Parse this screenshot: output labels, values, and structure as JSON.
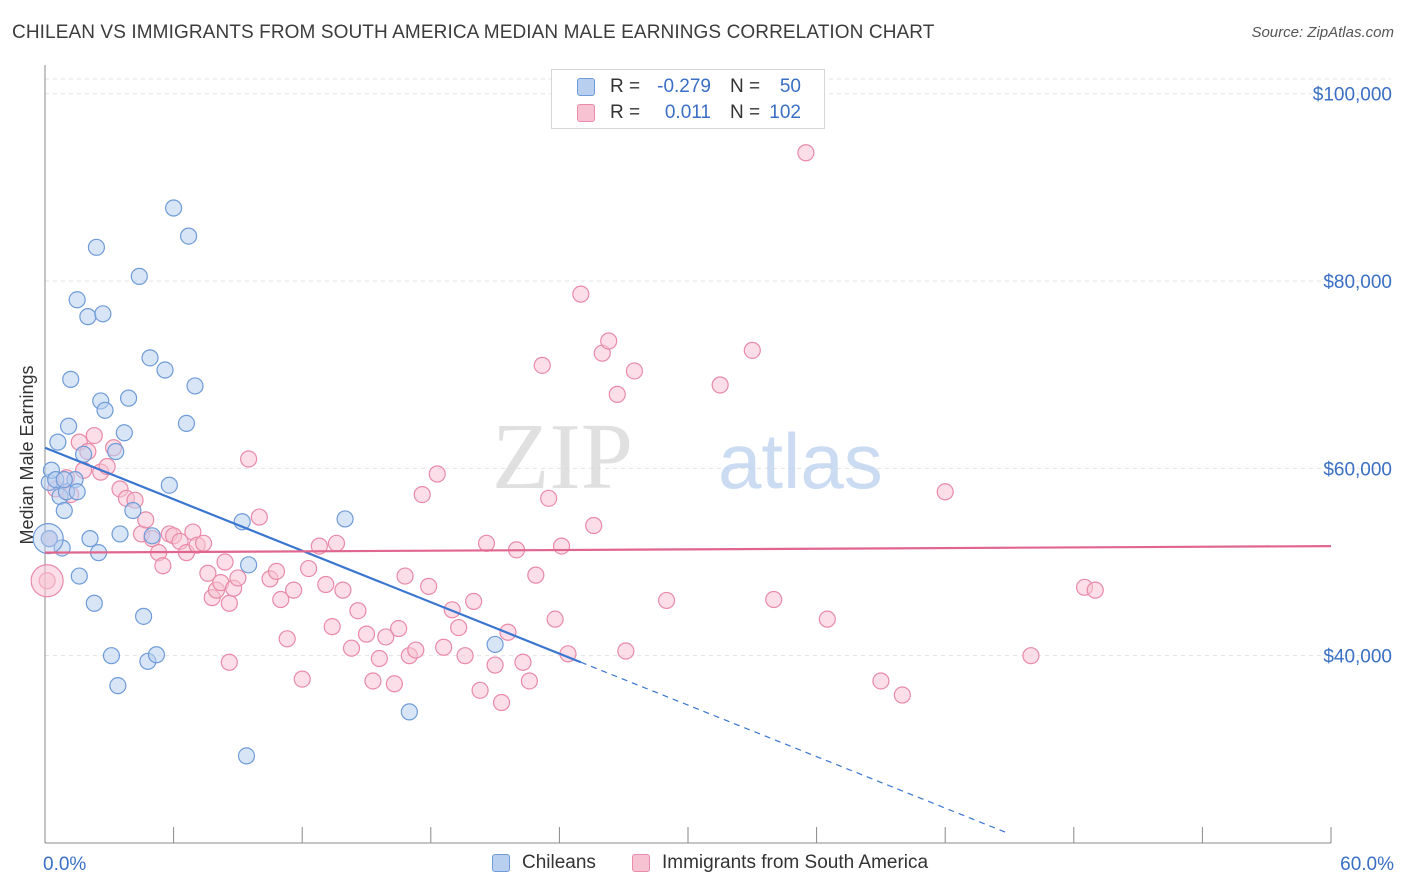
{
  "title": "CHILEAN VS IMMIGRANTS FROM SOUTH AMERICA MEDIAN MALE EARNINGS CORRELATION CHART",
  "source": "Source: ZipAtlas.com",
  "watermark": {
    "zip": "ZIP",
    "atlas": "atlas"
  },
  "colors": {
    "blue_fill": "#b8cff0",
    "blue_stroke": "#6f9bd8",
    "blue_line": "#3a76d0",
    "pink_fill": "#f7c3d3",
    "pink_stroke": "#e98aa8",
    "pink_line": "#e0668f",
    "tick_text": "#3a6fc4",
    "grid": "#e3e3e3"
  },
  "stats": {
    "row1": {
      "r_label": "R =",
      "r_value": "-0.279",
      "n_label": "N =",
      "n_value": "50"
    },
    "row2": {
      "r_label": "R =",
      "r_value": "0.011",
      "n_label": "N =",
      "n_value": "102"
    }
  },
  "legend": {
    "series1": "Chileans",
    "series2": "Immigrants from South America"
  },
  "chart_data": {
    "type": "scatter",
    "title": "CHILEAN VS IMMIGRANTS FROM SOUTH AMERICA MEDIAN MALE EARNINGS CORRELATION CHART",
    "xlabel": "",
    "ylabel": "Median Male Earnings",
    "xlim": [
      0,
      60
    ],
    "ylim": [
      20000,
      102000
    ],
    "x_tick_labels": [
      "0.0%",
      "60.0%"
    ],
    "y_ticks": [
      40000,
      60000,
      80000,
      100000
    ],
    "y_tick_labels": [
      "$40,000",
      "$60,000",
      "$80,000",
      "$100,000"
    ],
    "grid": true,
    "legend_position": "bottom",
    "series": [
      {
        "name": "Chileans",
        "points": [
          [
            0.2,
            52500
          ],
          [
            0.2,
            58500
          ],
          [
            0.3,
            59800
          ],
          [
            0.5,
            58800
          ],
          [
            0.6,
            62800
          ],
          [
            0.7,
            57000
          ],
          [
            0.8,
            51500
          ],
          [
            0.9,
            55500
          ],
          [
            1.0,
            57500
          ],
          [
            1.1,
            64500
          ],
          [
            1.2,
            69500
          ],
          [
            1.4,
            58800
          ],
          [
            1.5,
            78000
          ],
          [
            1.6,
            48500
          ],
          [
            1.8,
            61500
          ],
          [
            2.0,
            76200
          ],
          [
            2.1,
            52500
          ],
          [
            2.3,
            45600
          ],
          [
            2.4,
            83600
          ],
          [
            2.5,
            51000
          ],
          [
            2.6,
            67200
          ],
          [
            2.7,
            76500
          ],
          [
            2.8,
            66200
          ],
          [
            3.1,
            40000
          ],
          [
            3.3,
            61800
          ],
          [
            3.4,
            36800
          ],
          [
            3.5,
            53000
          ],
          [
            3.7,
            63800
          ],
          [
            3.9,
            67500
          ],
          [
            4.1,
            55500
          ],
          [
            4.4,
            80500
          ],
          [
            4.6,
            44200
          ],
          [
            4.8,
            39400
          ],
          [
            4.9,
            71800
          ],
          [
            5.0,
            52800
          ],
          [
            5.2,
            40100
          ],
          [
            5.6,
            70500
          ],
          [
            5.8,
            58200
          ],
          [
            6.0,
            87800
          ],
          [
            6.6,
            64800
          ],
          [
            6.7,
            84800
          ],
          [
            7.0,
            68800
          ],
          [
            9.2,
            54300
          ],
          [
            9.4,
            29300
          ],
          [
            9.5,
            49700
          ],
          [
            14.0,
            54600
          ],
          [
            17.0,
            34000
          ],
          [
            21.0,
            41200
          ],
          [
            1.5,
            57500
          ],
          [
            0.9,
            58800
          ]
        ]
      },
      {
        "name": "Immigrants from South America",
        "points": [
          [
            0.1,
            48000
          ],
          [
            0.2,
            52500
          ],
          [
            0.5,
            57800
          ],
          [
            1.0,
            59000
          ],
          [
            1.2,
            57200
          ],
          [
            1.6,
            62800
          ],
          [
            1.8,
            59800
          ],
          [
            2.0,
            61800
          ],
          [
            2.3,
            63500
          ],
          [
            2.6,
            59600
          ],
          [
            2.9,
            60200
          ],
          [
            3.2,
            62200
          ],
          [
            3.5,
            57800
          ],
          [
            3.8,
            56800
          ],
          [
            4.2,
            56600
          ],
          [
            4.5,
            53000
          ],
          [
            4.7,
            54500
          ],
          [
            5.0,
            52500
          ],
          [
            5.3,
            51000
          ],
          [
            5.5,
            49600
          ],
          [
            5.8,
            53000
          ],
          [
            6.0,
            52800
          ],
          [
            6.3,
            52200
          ],
          [
            6.6,
            51000
          ],
          [
            6.9,
            53200
          ],
          [
            7.1,
            51800
          ],
          [
            7.4,
            52000
          ],
          [
            7.6,
            48800
          ],
          [
            7.8,
            46200
          ],
          [
            8.0,
            47000
          ],
          [
            8.2,
            47800
          ],
          [
            8.4,
            50000
          ],
          [
            8.6,
            45600
          ],
          [
            8.8,
            47200
          ],
          [
            9.0,
            48300
          ],
          [
            9.5,
            61000
          ],
          [
            10.0,
            54800
          ],
          [
            10.5,
            48200
          ],
          [
            10.8,
            49000
          ],
          [
            11.0,
            46000
          ],
          [
            11.3,
            41800
          ],
          [
            11.6,
            47000
          ],
          [
            12.0,
            37500
          ],
          [
            12.3,
            49300
          ],
          [
            12.8,
            51700
          ],
          [
            13.1,
            47600
          ],
          [
            13.4,
            43100
          ],
          [
            13.6,
            52000
          ],
          [
            13.9,
            47000
          ],
          [
            14.3,
            40800
          ],
          [
            14.6,
            44800
          ],
          [
            15.0,
            42300
          ],
          [
            15.3,
            37300
          ],
          [
            15.6,
            39700
          ],
          [
            15.9,
            42000
          ],
          [
            16.3,
            37000
          ],
          [
            16.5,
            42900
          ],
          [
            16.8,
            48500
          ],
          [
            17.0,
            40000
          ],
          [
            17.3,
            40600
          ],
          [
            17.6,
            57200
          ],
          [
            17.9,
            47400
          ],
          [
            18.3,
            59400
          ],
          [
            18.6,
            40900
          ],
          [
            19.0,
            44900
          ],
          [
            19.3,
            43000
          ],
          [
            19.6,
            40000
          ],
          [
            20.0,
            45800
          ],
          [
            20.3,
            36300
          ],
          [
            20.6,
            52000
          ],
          [
            21.0,
            39000
          ],
          [
            21.3,
            35000
          ],
          [
            21.6,
            42500
          ],
          [
            22.0,
            51300
          ],
          [
            22.3,
            39300
          ],
          [
            22.6,
            37300
          ],
          [
            22.9,
            48600
          ],
          [
            23.2,
            71000
          ],
          [
            23.5,
            56800
          ],
          [
            23.8,
            43900
          ],
          [
            24.1,
            51700
          ],
          [
            24.4,
            40200
          ],
          [
            25.0,
            78600
          ],
          [
            25.6,
            53900
          ],
          [
            26.0,
            72300
          ],
          [
            26.3,
            73600
          ],
          [
            26.7,
            67900
          ],
          [
            27.1,
            40500
          ],
          [
            27.5,
            70400
          ],
          [
            29.0,
            45900
          ],
          [
            31.5,
            68900
          ],
          [
            33.0,
            72600
          ],
          [
            34.0,
            46000
          ],
          [
            35.5,
            93700
          ],
          [
            36.5,
            43900
          ],
          [
            39.0,
            37300
          ],
          [
            40.0,
            35800
          ],
          [
            42.0,
            57500
          ],
          [
            46.0,
            40000
          ],
          [
            48.5,
            47300
          ],
          [
            49.0,
            47000
          ],
          [
            8.6,
            39300
          ]
        ]
      }
    ],
    "trend_lines": [
      {
        "series": "Chileans",
        "x": [
          0,
          25
        ],
        "y": [
          62200,
          39300
        ],
        "dashed_extension_to_x": 45
      },
      {
        "series": "Immigrants from South America",
        "x": [
          0,
          60
        ],
        "y": [
          51000,
          51700
        ]
      }
    ]
  }
}
